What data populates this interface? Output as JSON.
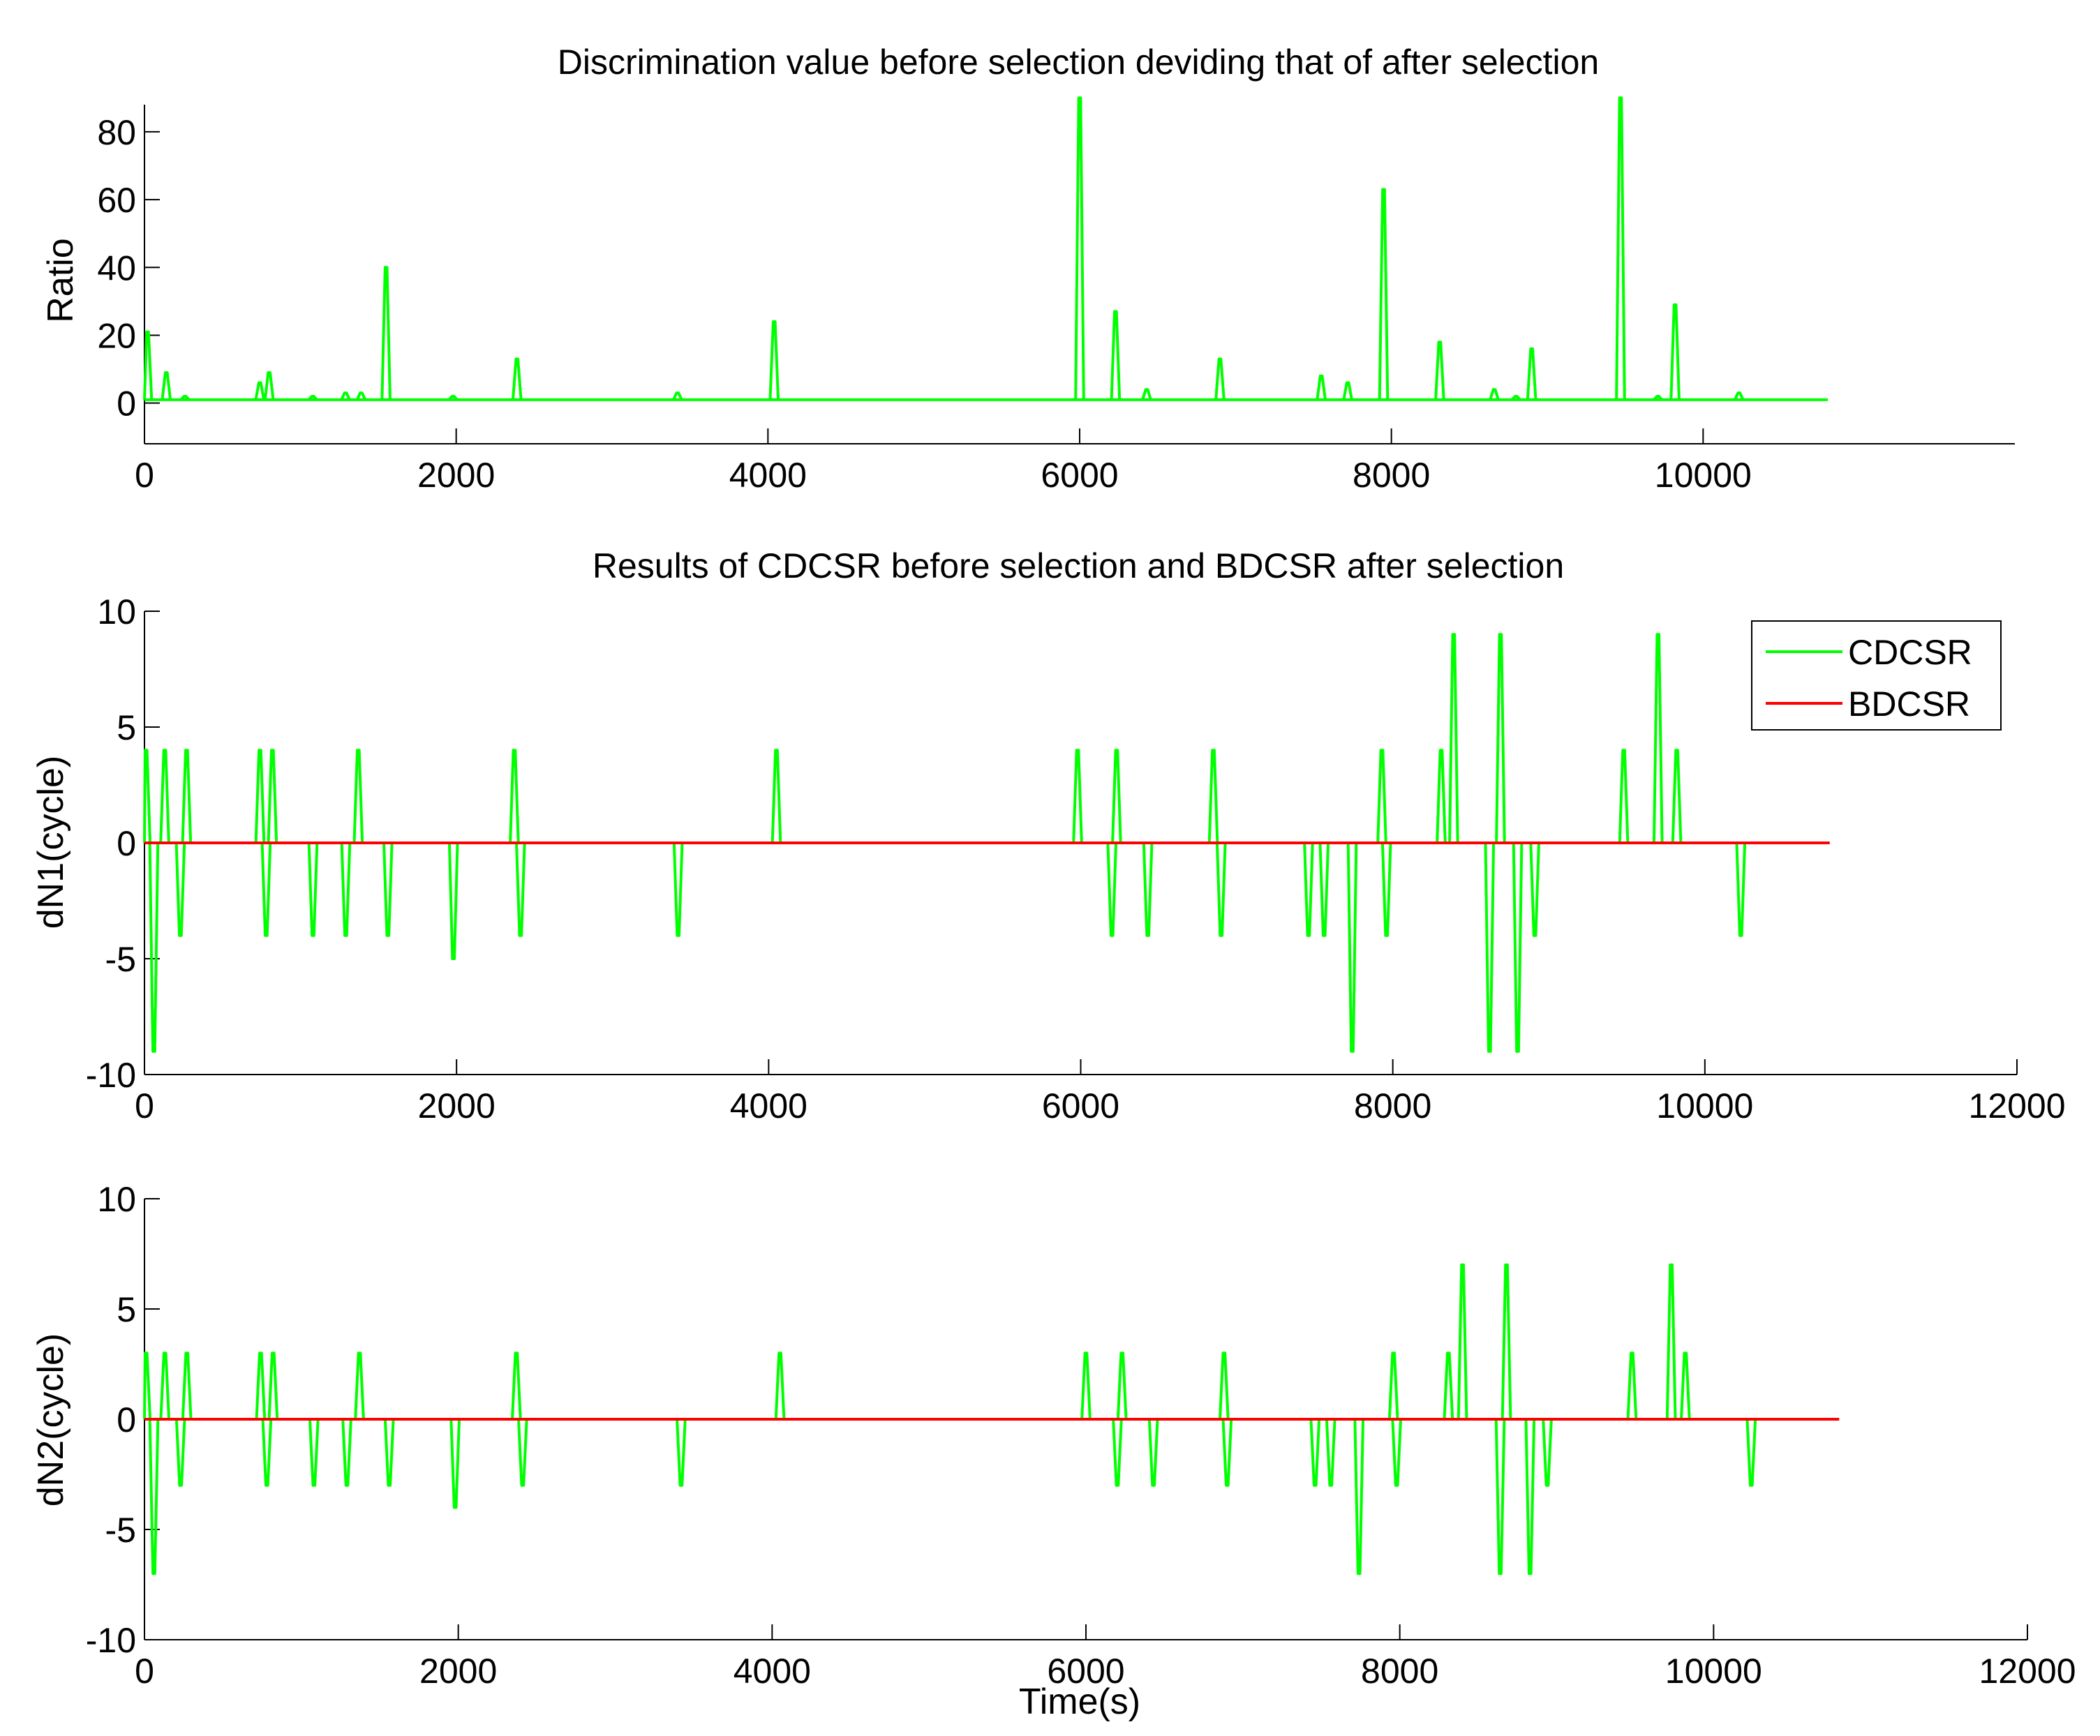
{
  "colors": {
    "cdcsr": "#00ff00",
    "bdcsr": "#ff0000",
    "ratio": "#00ff00",
    "axis": "#000000",
    "background": "#ffffff"
  },
  "chart_data": [
    {
      "id": "ratio",
      "type": "line",
      "title": "Discrimination value before selection deviding that of after selection",
      "xlabel": "",
      "ylabel": "Ratio",
      "xlim": [
        0,
        12000
      ],
      "ylim": [
        -12,
        88
      ],
      "xticks": [
        0,
        2000,
        4000,
        6000,
        8000,
        10000
      ],
      "xtick_labels": [
        "0",
        "2000",
        "4000",
        "6000",
        "8000",
        "10000"
      ],
      "yticks": [
        0,
        20,
        40,
        60,
        80
      ],
      "ytick_labels": [
        "0",
        "20",
        "40",
        "60",
        "80"
      ],
      "baseline": 1,
      "x_end": 10800,
      "series": [
        {
          "name": "Ratio",
          "color_key": "ratio",
          "peaks": [
            [
              20,
              21
            ],
            [
              140,
              9
            ],
            [
              260,
              2
            ],
            [
              740,
              6
            ],
            [
              800,
              9
            ],
            [
              1080,
              2
            ],
            [
              1290,
              3
            ],
            [
              1390,
              3
            ],
            [
              1550,
              40
            ],
            [
              1980,
              2
            ],
            [
              2390,
              13
            ],
            [
              3420,
              3
            ],
            [
              4040,
              24
            ],
            [
              6000,
              90
            ],
            [
              6230,
              27
            ],
            [
              6430,
              4
            ],
            [
              6900,
              13
            ],
            [
              7550,
              8
            ],
            [
              7720,
              6
            ],
            [
              7950,
              63
            ],
            [
              8310,
              18
            ],
            [
              8660,
              4
            ],
            [
              8800,
              2
            ],
            [
              8900,
              16
            ],
            [
              9470,
              90
            ],
            [
              9710,
              2
            ],
            [
              9820,
              29
            ],
            [
              10230,
              3
            ]
          ]
        }
      ]
    },
    {
      "id": "dn1",
      "type": "line",
      "title": "Results of CDCSR before selection and BDCSR after selection",
      "xlabel": "",
      "ylabel": "dN1(cycle)",
      "xlim": [
        0,
        12000
      ],
      "ylim": [
        -10,
        10
      ],
      "xticks": [
        0,
        2000,
        4000,
        6000,
        8000,
        10000,
        12000
      ],
      "xtick_labels": [
        "0",
        "2000",
        "4000",
        "6000",
        "8000",
        "10000",
        "12000"
      ],
      "yticks": [
        -10,
        -5,
        0,
        5,
        10
      ],
      "ytick_labels": [
        "-10",
        "-5",
        "0",
        "5",
        "10"
      ],
      "legend": {
        "placement": "top-right",
        "entries": [
          "CDCSR",
          "BDCSR"
        ]
      },
      "x_end": 10800,
      "series": [
        {
          "name": "CDCSR",
          "color_key": "cdcsr",
          "peaks": [
            [
              10,
              4
            ],
            [
              60,
              -9
            ],
            [
              130,
              4
            ],
            [
              230,
              -4
            ],
            [
              270,
              4
            ],
            [
              740,
              4
            ],
            [
              780,
              -4
            ],
            [
              820,
              4
            ],
            [
              1080,
              -4
            ],
            [
              1290,
              -4
            ],
            [
              1370,
              4
            ],
            [
              1560,
              -4
            ],
            [
              1980,
              -5
            ],
            [
              2370,
              4
            ],
            [
              2410,
              -4
            ],
            [
              3420,
              -4
            ],
            [
              4050,
              4
            ],
            [
              5980,
              4
            ],
            [
              6200,
              -4
            ],
            [
              6230,
              4
            ],
            [
              6430,
              -4
            ],
            [
              6850,
              4
            ],
            [
              6900,
              -4
            ],
            [
              7460,
              -4
            ],
            [
              7560,
              -4
            ],
            [
              7740,
              -9
            ],
            [
              7930,
              4
            ],
            [
              7960,
              -4
            ],
            [
              8310,
              4
            ],
            [
              8390,
              9
            ],
            [
              8620,
              -9
            ],
            [
              8690,
              9
            ],
            [
              8800,
              -9
            ],
            [
              8910,
              -4
            ],
            [
              9480,
              4
            ],
            [
              9700,
              9
            ],
            [
              9820,
              4
            ],
            [
              10230,
              -4
            ]
          ]
        },
        {
          "name": "BDCSR",
          "color_key": "bdcsr",
          "constant": 0
        }
      ]
    },
    {
      "id": "dn2",
      "type": "line",
      "title": "",
      "xlabel": "Time(s)",
      "ylabel": "dN2(cycle)",
      "xlim": [
        0,
        12000
      ],
      "ylim": [
        -10,
        10
      ],
      "xticks": [
        0,
        2000,
        4000,
        6000,
        8000,
        10000,
        12000
      ],
      "xtick_labels": [
        "0",
        "2000",
        "4000",
        "6000",
        "8000",
        "10000",
        "12000"
      ],
      "yticks": [
        -10,
        -5,
        0,
        5,
        10
      ],
      "ytick_labels": [
        "-10",
        "-5",
        "0",
        "5",
        "10"
      ],
      "x_end": 10800,
      "series": [
        {
          "name": "CDCSR",
          "color_key": "cdcsr",
          "peaks": [
            [
              10,
              3
            ],
            [
              60,
              -7
            ],
            [
              130,
              3
            ],
            [
              230,
              -3
            ],
            [
              270,
              3
            ],
            [
              740,
              3
            ],
            [
              780,
              -3
            ],
            [
              820,
              3
            ],
            [
              1080,
              -3
            ],
            [
              1290,
              -3
            ],
            [
              1370,
              3
            ],
            [
              1560,
              -3
            ],
            [
              1980,
              -4
            ],
            [
              2370,
              3
            ],
            [
              2410,
              -3
            ],
            [
              3420,
              -3
            ],
            [
              4050,
              3
            ],
            [
              6000,
              3
            ],
            [
              6200,
              -3
            ],
            [
              6230,
              3
            ],
            [
              6430,
              -3
            ],
            [
              6880,
              3
            ],
            [
              6900,
              -3
            ],
            [
              7460,
              -3
            ],
            [
              7560,
              -3
            ],
            [
              7740,
              -7
            ],
            [
              7960,
              3
            ],
            [
              7980,
              -3
            ],
            [
              8310,
              3
            ],
            [
              8400,
              7
            ],
            [
              8640,
              -7
            ],
            [
              8680,
              7
            ],
            [
              8830,
              -7
            ],
            [
              8940,
              -3
            ],
            [
              9480,
              3
            ],
            [
              9730,
              7
            ],
            [
              9820,
              3
            ],
            [
              10240,
              -3
            ]
          ]
        },
        {
          "name": "BDCSR",
          "color_key": "bdcsr",
          "constant": 0
        }
      ]
    }
  ]
}
